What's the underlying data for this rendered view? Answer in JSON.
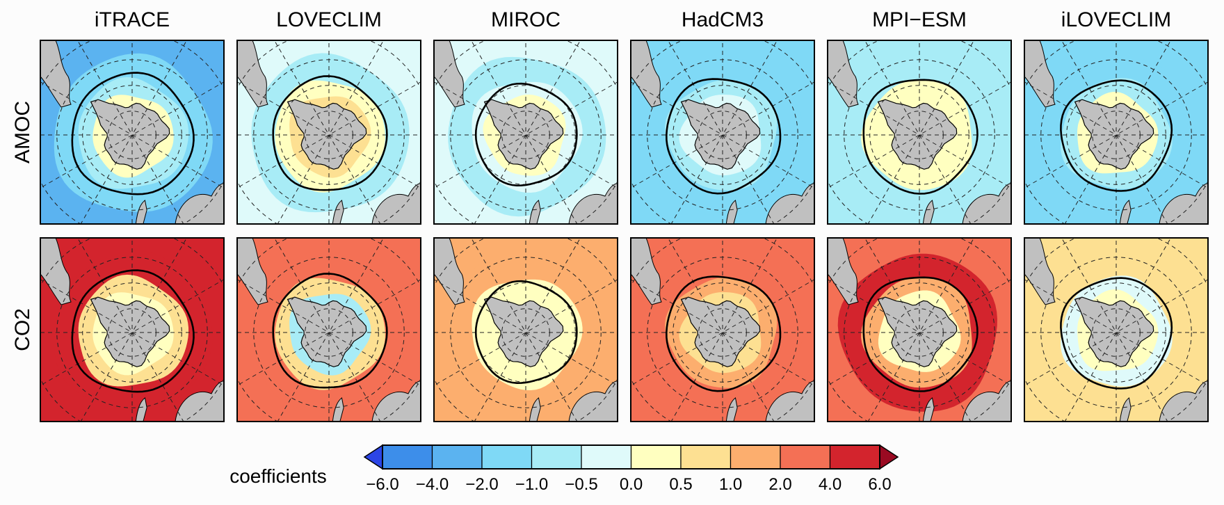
{
  "chart_data": {
    "type": "heatmap",
    "description_kind": "polar-stereographic regression-coefficient maps",
    "models": [
      "iTRACE",
      "LOVECLIM",
      "MIROC",
      "HadCM3",
      "MPI−ESM",
      "iLOVECLIM"
    ],
    "rows": [
      {
        "label": "AMOC",
        "panels": [
          {
            "model": "iTRACE",
            "outer": -3.0,
            "mid": -1.5,
            "inner": -0.7,
            "coast": 0.3,
            "front_radius": 0.66
          },
          {
            "model": "LOVECLIM",
            "outer": -0.2,
            "mid": -0.8,
            "inner": 0.4,
            "coast": 0.8,
            "front_radius": 0.62
          },
          {
            "model": "MIROC",
            "outer": -0.3,
            "mid": -0.6,
            "inner": -0.3,
            "coast": 0.2,
            "front_radius": 0.55
          },
          {
            "model": "HadCM3",
            "outer": -1.5,
            "mid": -1.2,
            "inner": -0.8,
            "coast": -0.2,
            "front_radius": 0.62
          },
          {
            "model": "MPI−ESM",
            "outer": -0.8,
            "mid": -1.0,
            "inner": 0.2,
            "coast": 0.4,
            "front_radius": 0.62
          },
          {
            "model": "iLOVECLIM",
            "outer": -1.2,
            "mid": -1.5,
            "inner": -0.6,
            "coast": 0.2,
            "front_radius": 0.6
          }
        ]
      },
      {
        "label": "CO2",
        "panels": [
          {
            "model": "iTRACE",
            "outer": 4.5,
            "mid": 5.2,
            "inner": 0.8,
            "coast": 0.3,
            "front_radius": 0.66
          },
          {
            "model": "LOVECLIM",
            "outer": 2.5,
            "mid": 3.8,
            "inner": 0.7,
            "coast": -0.8,
            "front_radius": 0.62
          },
          {
            "model": "MIROC",
            "outer": 1.5,
            "mid": 1.3,
            "inner": 0.4,
            "coast": 0.2,
            "front_radius": 0.55
          },
          {
            "model": "HadCM3",
            "outer": 2.8,
            "mid": 3.5,
            "inner": 1.2,
            "coast": 0.5,
            "front_radius": 0.62
          },
          {
            "model": "MPI−ESM",
            "outer": 3.0,
            "mid": 4.5,
            "inner": 1.2,
            "coast": 0.4,
            "front_radius": 0.62
          },
          {
            "model": "iLOVECLIM",
            "outer": 0.9,
            "mid": 0.5,
            "inner": -0.3,
            "coast": 0.3,
            "front_radius": 0.6
          }
        ]
      }
    ],
    "colorbar": {
      "title": "coefficients",
      "levels": [
        -6.0,
        -4.0,
        -2.0,
        -1.0,
        -0.5,
        0.0,
        0.5,
        1.0,
        2.0,
        4.0,
        6.0
      ],
      "tick_labels": [
        "−6.0",
        "−4.0",
        "−2.0",
        "−1.0",
        "−0.5",
        "0.0",
        "0.5",
        "1.0",
        "2.0",
        "4.0",
        "6.0"
      ],
      "colors": [
        "#2c45e6",
        "#3d8eea",
        "#5bb3f0",
        "#7fd9f6",
        "#a8ecf6",
        "#dffafa",
        "#ffffc0",
        "#fde092",
        "#fcae6e",
        "#f47055",
        "#d3242d",
        "#9a0a22"
      ],
      "extend": "both"
    }
  }
}
